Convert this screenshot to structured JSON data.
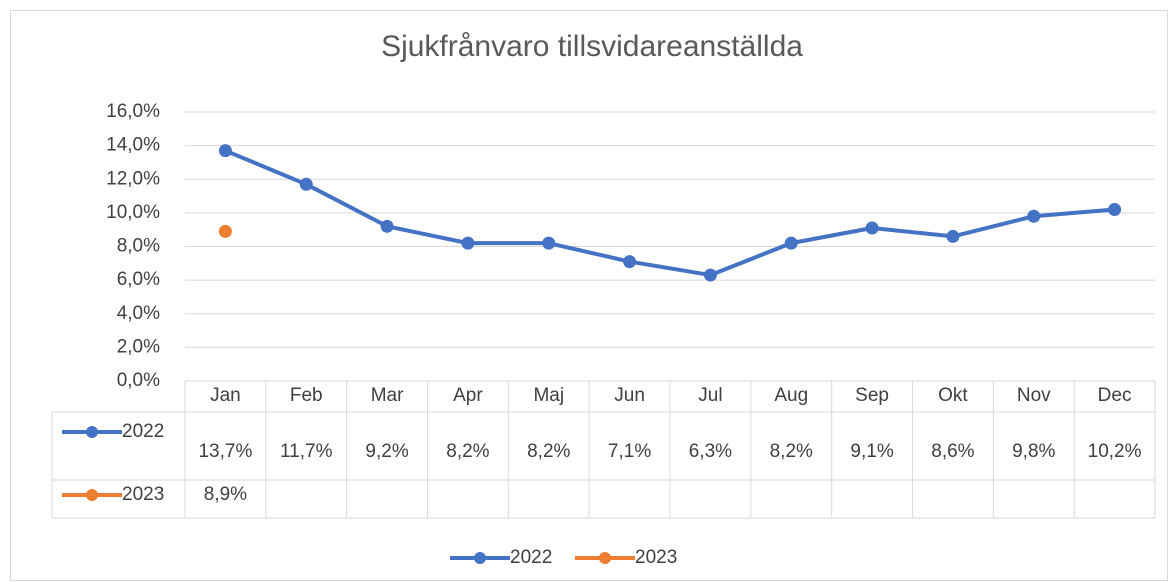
{
  "chart_data": {
    "type": "line",
    "title": "Sjukfrånvaro tillsvidareanställda",
    "categories": [
      "Jan",
      "Feb",
      "Mar",
      "Apr",
      "Maj",
      "Jun",
      "Jul",
      "Aug",
      "Sep",
      "Okt",
      "Nov",
      "Dec"
    ],
    "series": [
      {
        "name": "2022",
        "color": "#4472c4",
        "values": [
          13.7,
          11.7,
          9.2,
          8.2,
          8.2,
          7.1,
          6.3,
          8.2,
          9.1,
          8.6,
          9.8,
          10.2
        ],
        "value_labels": [
          "13,7%",
          "11,7%",
          "9,2%",
          "8,2%",
          "8,2%",
          "7,1%",
          "6,3%",
          "8,2%",
          "9,1%",
          "8,6%",
          "9,8%",
          "10,2%"
        ]
      },
      {
        "name": "2023",
        "color": "#ed7d31",
        "values": [
          8.9,
          null,
          null,
          null,
          null,
          null,
          null,
          null,
          null,
          null,
          null,
          null
        ],
        "value_labels": [
          "8,9%",
          null,
          null,
          null,
          null,
          null,
          null,
          null,
          null,
          null,
          null,
          null
        ]
      }
    ],
    "ylim": [
      0,
      16
    ],
    "yticks": [
      {
        "value": 0,
        "label": "0,0%"
      },
      {
        "value": 2,
        "label": "2,0%"
      },
      {
        "value": 4,
        "label": "4,0%"
      },
      {
        "value": 6,
        "label": "6,0%"
      },
      {
        "value": 8,
        "label": "8,0%"
      },
      {
        "value": 10,
        "label": "10,0%"
      },
      {
        "value": 12,
        "label": "12,0%"
      },
      {
        "value": 14,
        "label": "14,0%"
      },
      {
        "value": 16,
        "label": "16,0%"
      }
    ],
    "grid": true,
    "legend": "bottom"
  }
}
